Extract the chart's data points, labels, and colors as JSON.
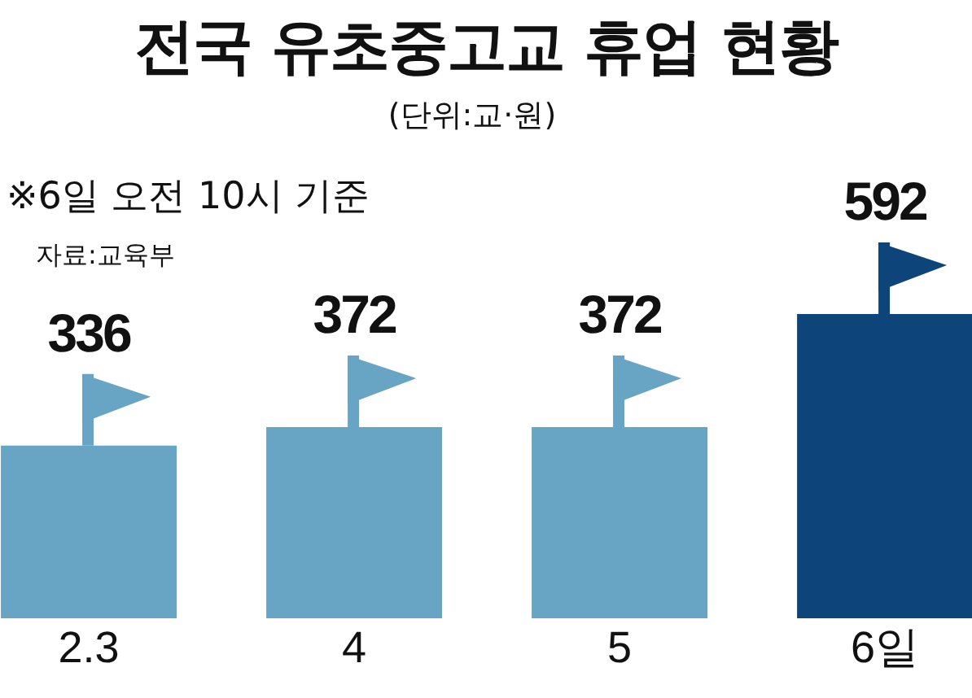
{
  "chart_data": {
    "type": "bar",
    "title": "전국 유초중고교 휴업 현황",
    "subtitle": "(단위:교·원)",
    "annotations": [
      "※6일 오전 10시 기준",
      "자료:교육부"
    ],
    "categories": [
      "2.3",
      "4",
      "5",
      "6일"
    ],
    "values": [
      336,
      372,
      372,
      592
    ],
    "colors": [
      "#68a4c4",
      "#68a4c4",
      "#68a4c4",
      "#0d4479"
    ],
    "data_labels": true
  }
}
